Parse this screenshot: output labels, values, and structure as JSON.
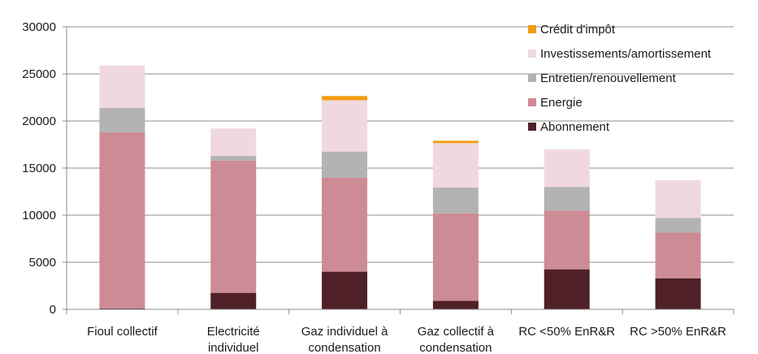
{
  "chart_data": {
    "type": "bar",
    "stacked": true,
    "categories": [
      [
        "Fioul collectif"
      ],
      [
        "Electricité",
        "individuel"
      ],
      [
        "Gaz individuel à",
        "condensation"
      ],
      [
        "Gaz collectif à",
        "condensation"
      ],
      [
        "RC <50% EnR&R"
      ],
      [
        "RC >50% EnR&R"
      ]
    ],
    "series": [
      {
        "name": "Abonnement",
        "color": "#4f2028",
        "values": [
          100,
          1750,
          4000,
          900,
          4250,
          3300
        ]
      },
      {
        "name": "Energie",
        "color": "#cd8b96",
        "values": [
          18700,
          14050,
          10000,
          9300,
          6250,
          4850
        ]
      },
      {
        "name": "Entretien/renouvellement",
        "color": "#b3b3b3",
        "values": [
          2600,
          500,
          2750,
          2750,
          2500,
          1550
        ]
      },
      {
        "name": "Investissements/amortissement",
        "color": "#f0d9de",
        "values": [
          4500,
          2900,
          5450,
          4700,
          4000,
          4000
        ]
      },
      {
        "name": "Crédit d'impôt",
        "color": "#f39c12",
        "values": [
          0,
          0,
          450,
          250,
          0,
          0
        ]
      }
    ],
    "yticks": [
      0,
      5000,
      10000,
      15000,
      20000,
      25000,
      30000
    ],
    "ylim": [
      0,
      30000
    ],
    "grid": true,
    "legend_position": "top-right",
    "legend_order": [
      "Crédit d'impôt",
      "Investissements/amortissement",
      "Entretien/renouvellement",
      "Energie",
      "Abonnement"
    ]
  }
}
